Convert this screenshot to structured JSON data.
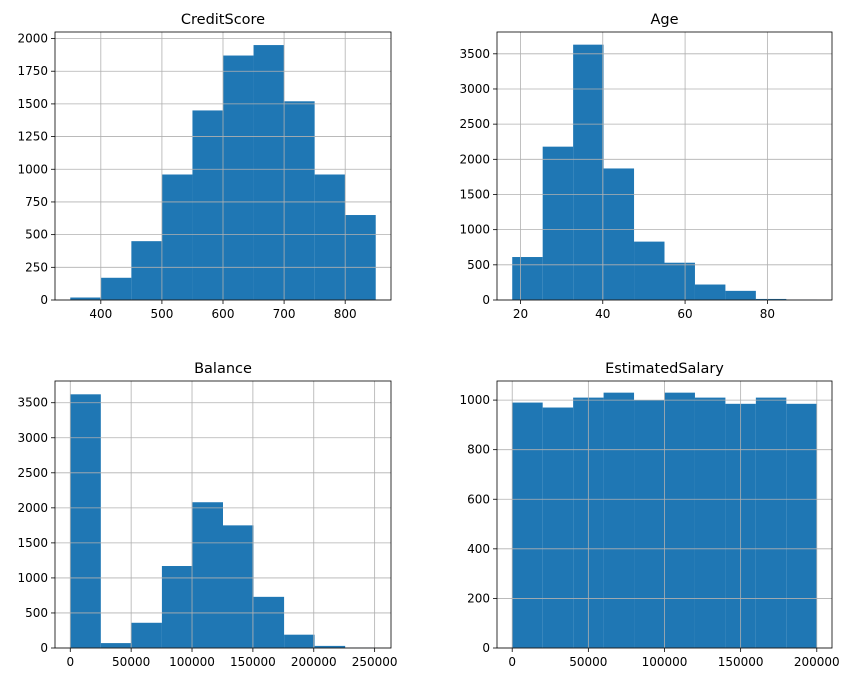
{
  "chart_data": [
    {
      "type": "histogram",
      "title": "CreditScore",
      "color": "#1f77b4",
      "grid": true,
      "bins": [
        350,
        400,
        450,
        500,
        550,
        600,
        650,
        700,
        750,
        800,
        850
      ],
      "values": [
        19,
        170,
        450,
        960,
        1450,
        1870,
        1950,
        1520,
        960,
        650
      ],
      "xlim": [
        325,
        875
      ],
      "xticks": [
        400,
        500,
        600,
        700,
        800
      ],
      "ylim": [
        0,
        2050
      ],
      "yticks": [
        0,
        250,
        500,
        750,
        1000,
        1250,
        1500,
        1750,
        2000
      ]
    },
    {
      "type": "histogram",
      "title": "Age",
      "color": "#1f77b4",
      "grid": true,
      "bins": [
        18,
        25.4,
        32.8,
        40.2,
        47.6,
        55,
        62.4,
        69.8,
        77.2,
        84.6,
        92
      ],
      "values": [
        611,
        2180,
        3630,
        1870,
        830,
        530,
        220,
        130,
        15,
        5
      ],
      "xlim": [
        14.3,
        95.7
      ],
      "xticks": [
        20,
        40,
        60,
        80
      ],
      "ylim": [
        0,
        3810
      ],
      "yticks": [
        0,
        500,
        1000,
        1500,
        2000,
        2500,
        3000,
        3500
      ]
    },
    {
      "type": "histogram",
      "title": "Balance",
      "color": "#1f77b4",
      "grid": true,
      "bins": [
        0,
        25089.8,
        50179.6,
        75269.4,
        100359.2,
        125449,
        150538.8,
        175628.6,
        200718.4,
        225808.2,
        250898
      ],
      "values": [
        3620,
        70,
        360,
        1170,
        2080,
        1750,
        730,
        190,
        30,
        5
      ],
      "xlim": [
        -12545,
        263443
      ],
      "xticks": [
        0,
        50000,
        100000,
        150000,
        200000,
        250000
      ],
      "ylim": [
        0,
        3810
      ],
      "yticks": [
        0,
        500,
        1000,
        1500,
        2000,
        2500,
        3000,
        3500
      ]
    },
    {
      "type": "histogram",
      "title": "EstimatedSalary",
      "color": "#1f77b4",
      "grid": true,
      "bins": [
        11.58,
        20009.6,
        40007.7,
        60005.7,
        80003.8,
        100001.8,
        119999.9,
        139997.9,
        159996,
        179994,
        199992
      ],
      "values": [
        990,
        970,
        1010,
        1030,
        1000,
        1030,
        1010,
        985,
        1010,
        985
      ],
      "xlim": [
        -9988,
        209992
      ],
      "xticks": [
        0,
        50000,
        100000,
        150000,
        200000
      ],
      "ylim": [
        0,
        1077
      ],
      "yticks": [
        0,
        200,
        400,
        600,
        800,
        1000
      ]
    }
  ]
}
